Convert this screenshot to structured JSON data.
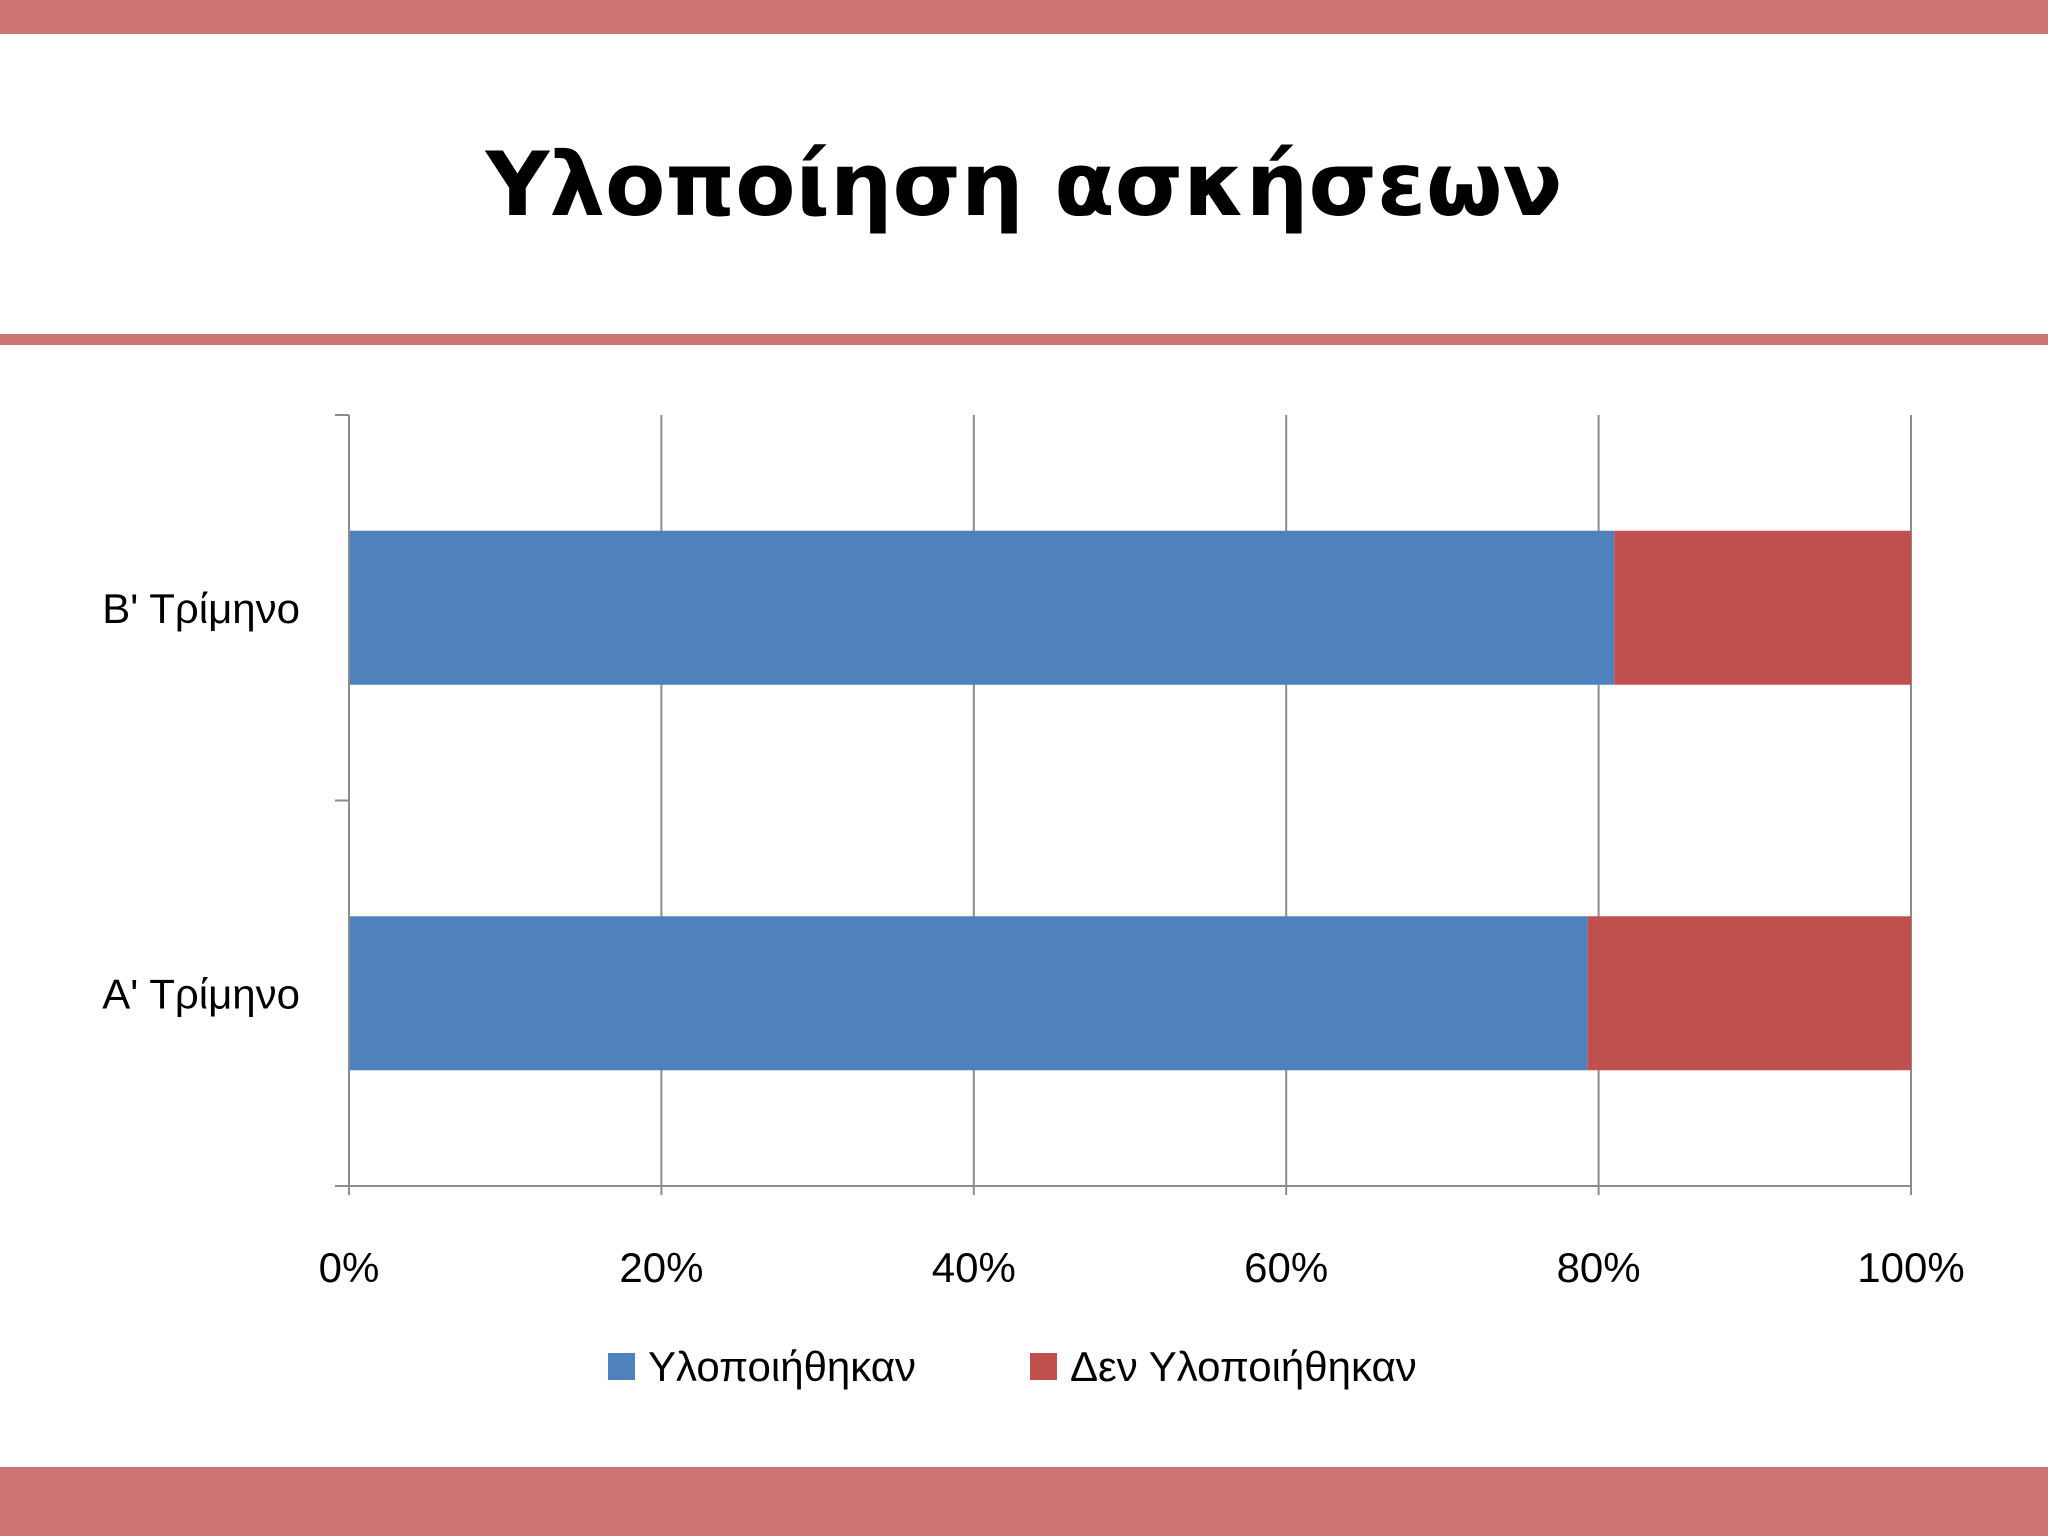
{
  "slide": {
    "title": "Υλοποίηση ασκήσεων"
  },
  "colors": {
    "band": "#cd7371",
    "series_done": "#4f81bd",
    "series_not_done": "#c0504d",
    "grid": "#8c8c8c"
  },
  "chart_data": {
    "type": "bar",
    "orientation": "horizontal",
    "stacking": "percent",
    "categories": [
      "Α' Τρίμηνο",
      "Β' Τρίμηνο"
    ],
    "series": [
      {
        "name": "Υλοποιήθηκαν",
        "values": [
          79.3,
          81.0
        ]
      },
      {
        "name": "Δεν Υλοποιήθηκαν",
        "values": [
          20.7,
          19.0
        ]
      }
    ],
    "xlim": [
      0,
      100
    ],
    "x_ticks": [
      "0%",
      "20%",
      "40%",
      "60%",
      "80%",
      "100%"
    ],
    "grid": "vertical",
    "legend": "bottom"
  }
}
